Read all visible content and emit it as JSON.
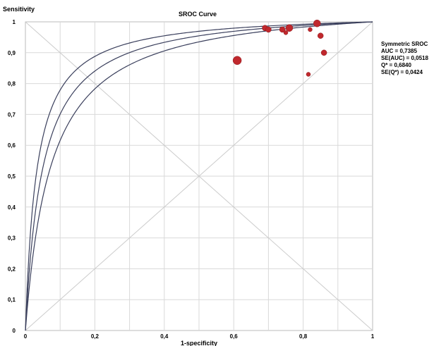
{
  "chart_data": {
    "type": "scatter",
    "title": "SROC Curve",
    "ylabel": "Sensitivity",
    "xlabel": "1-specificity",
    "xlim": [
      0,
      1
    ],
    "ylim": [
      0,
      1
    ],
    "grid": true,
    "x_ticks": [
      "0",
      "0,2",
      "0,4",
      "0,6",
      "0,8",
      "1"
    ],
    "y_ticks": [
      "0",
      "0,1",
      "0,2",
      "0,3",
      "0,4",
      "0,5",
      "0,6",
      "0,7",
      "0,8",
      "0,9",
      "1"
    ],
    "curve_q_values": [
      0.6416,
      0.684,
      0.7264
    ],
    "points": [
      {
        "x": 0.61,
        "y": 0.875,
        "size": 6
      },
      {
        "x": 0.69,
        "y": 0.98,
        "size": 4
      },
      {
        "x": 0.7,
        "y": 0.975,
        "size": 4
      },
      {
        "x": 0.74,
        "y": 0.975,
        "size": 4
      },
      {
        "x": 0.75,
        "y": 0.965,
        "size": 3
      },
      {
        "x": 0.76,
        "y": 0.98,
        "size": 5
      },
      {
        "x": 0.82,
        "y": 0.975,
        "size": 3
      },
      {
        "x": 0.84,
        "y": 0.995,
        "size": 5
      },
      {
        "x": 0.85,
        "y": 0.955,
        "size": 4
      },
      {
        "x": 0.86,
        "y": 0.9,
        "size": 4
      },
      {
        "x": 0.815,
        "y": 0.83,
        "size": 3
      }
    ],
    "point_color": "#c0282d",
    "curve_color": "#3a3f5c",
    "diagonal_color": "#cccccc",
    "stats": [
      "Symmetric SROC",
      "AUC = 0,7385",
      "SE(AUC) = 0,0518",
      "Q* = 0,6840",
      "SE(Q*) = 0,0424"
    ]
  }
}
